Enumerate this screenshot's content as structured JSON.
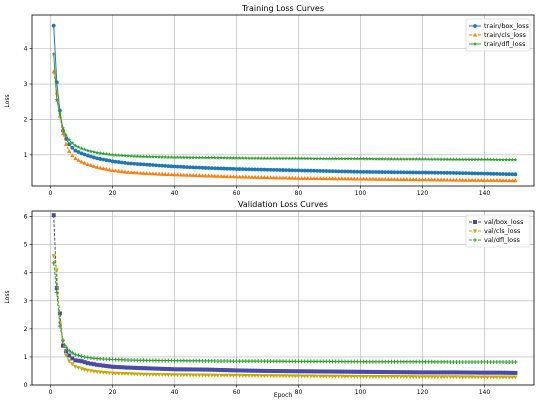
{
  "figure": {
    "background": "#ffffff",
    "grid_color": "#b0b0b0"
  },
  "chart_data": [
    {
      "type": "line",
      "title": "Training Loss Curves",
      "xlabel": "",
      "ylabel": "Loss",
      "xlim": [
        -6,
        156
      ],
      "ylim": [
        0.12,
        4.95
      ],
      "xticks": [
        0,
        20,
        40,
        60,
        80,
        100,
        120,
        140
      ],
      "yticks": [
        1,
        2,
        3,
        4
      ],
      "grid": true,
      "legend_position": "top-right",
      "x_range": [
        1,
        150
      ],
      "series": [
        {
          "name": "train/box_loss",
          "color": "#1f77b4",
          "marker": "circle",
          "linestyle": "solid",
          "points": [
            [
              1,
              4.65
            ],
            [
              2,
              3.05
            ],
            [
              3,
              2.25
            ],
            [
              4,
              1.68
            ],
            [
              5,
              1.45
            ],
            [
              6,
              1.3
            ],
            [
              7,
              1.2
            ],
            [
              8,
              1.12
            ],
            [
              10,
              1.04
            ],
            [
              12,
              0.98
            ],
            [
              15,
              0.9
            ],
            [
              20,
              0.82
            ],
            [
              25,
              0.76
            ],
            [
              30,
              0.73
            ],
            [
              40,
              0.67
            ],
            [
              50,
              0.63
            ],
            [
              60,
              0.6
            ],
            [
              70,
              0.58
            ],
            [
              80,
              0.56
            ],
            [
              90,
              0.54
            ],
            [
              100,
              0.52
            ],
            [
              110,
              0.51
            ],
            [
              120,
              0.5
            ],
            [
              130,
              0.49
            ],
            [
              140,
              0.47
            ],
            [
              145,
              0.46
            ],
            [
              150,
              0.45
            ]
          ]
        },
        {
          "name": "train/cls_loss",
          "color": "#ff7f0e",
          "marker": "triangle",
          "linestyle": "dashed",
          "points": [
            [
              1,
              3.35
            ],
            [
              2,
              2.75
            ],
            [
              3,
              2.1
            ],
            [
              4,
              1.6
            ],
            [
              5,
              1.3
            ],
            [
              6,
              1.1
            ],
            [
              7,
              0.98
            ],
            [
              8,
              0.9
            ],
            [
              10,
              0.8
            ],
            [
              12,
              0.73
            ],
            [
              15,
              0.65
            ],
            [
              20,
              0.56
            ],
            [
              25,
              0.51
            ],
            [
              30,
              0.48
            ],
            [
              40,
              0.44
            ],
            [
              50,
              0.41
            ],
            [
              60,
              0.38
            ],
            [
              70,
              0.36
            ],
            [
              80,
              0.34
            ],
            [
              90,
              0.33
            ],
            [
              100,
              0.32
            ],
            [
              110,
              0.31
            ],
            [
              120,
              0.3
            ],
            [
              130,
              0.29
            ],
            [
              140,
              0.28
            ],
            [
              145,
              0.28
            ],
            [
              150,
              0.27
            ]
          ]
        },
        {
          "name": "train/dfl_loss",
          "color": "#2ca02c",
          "marker": "star",
          "linestyle": "solid",
          "points": [
            [
              1,
              3.85
            ],
            [
              2,
              2.55
            ],
            [
              3,
              2.15
            ],
            [
              4,
              1.75
            ],
            [
              5,
              1.55
            ],
            [
              6,
              1.42
            ],
            [
              7,
              1.33
            ],
            [
              8,
              1.26
            ],
            [
              10,
              1.18
            ],
            [
              12,
              1.12
            ],
            [
              15,
              1.06
            ],
            [
              20,
              1.0
            ],
            [
              25,
              0.97
            ],
            [
              30,
              0.95
            ],
            [
              40,
              0.93
            ],
            [
              50,
              0.92
            ],
            [
              60,
              0.91
            ],
            [
              70,
              0.9
            ],
            [
              80,
              0.9
            ],
            [
              90,
              0.89
            ],
            [
              100,
              0.89
            ],
            [
              110,
              0.88
            ],
            [
              120,
              0.88
            ],
            [
              130,
              0.87
            ],
            [
              140,
              0.87
            ],
            [
              145,
              0.86
            ],
            [
              150,
              0.86
            ]
          ]
        }
      ]
    },
    {
      "type": "line",
      "title": "Validation Loss Curves",
      "xlabel": "Epoch",
      "ylabel": "Loss",
      "xlim": [
        -6,
        156
      ],
      "ylim": [
        0,
        6.2
      ],
      "xticks": [
        0,
        20,
        40,
        60,
        80,
        100,
        120,
        140
      ],
      "yticks": [
        0,
        1,
        2,
        3,
        4,
        5,
        6
      ],
      "grid": true,
      "legend_position": "top-right",
      "x_range": [
        1,
        150
      ],
      "series": [
        {
          "name": "val/box_loss",
          "color": "#4a4aa8",
          "marker": "square",
          "linestyle": "dashed",
          "points": [
            [
              1,
              6.05
            ],
            [
              2,
              3.45
            ],
            [
              3,
              2.55
            ],
            [
              4,
              1.4
            ],
            [
              5,
              1.2
            ],
            [
              6,
              1.05
            ],
            [
              7,
              0.95
            ],
            [
              8,
              0.88
            ],
            [
              10,
              0.85
            ],
            [
              12,
              0.78
            ],
            [
              15,
              0.72
            ],
            [
              20,
              0.65
            ],
            [
              25,
              0.62
            ],
            [
              30,
              0.6
            ],
            [
              40,
              0.56
            ],
            [
              50,
              0.55
            ],
            [
              60,
              0.52
            ],
            [
              70,
              0.5
            ],
            [
              80,
              0.49
            ],
            [
              90,
              0.48
            ],
            [
              100,
              0.47
            ],
            [
              110,
              0.46
            ],
            [
              120,
              0.45
            ],
            [
              130,
              0.45
            ],
            [
              140,
              0.44
            ],
            [
              145,
              0.44
            ],
            [
              150,
              0.43
            ]
          ]
        },
        {
          "name": "val/cls_loss",
          "color": "#c9a800",
          "marker": "triangle-down",
          "linestyle": "dashed",
          "points": [
            [
              1,
              4.6
            ],
            [
              2,
              4.1
            ],
            [
              3,
              2.2
            ],
            [
              4,
              1.55
            ],
            [
              5,
              1.05
            ],
            [
              6,
              0.85
            ],
            [
              7,
              0.75
            ],
            [
              8,
              0.65
            ],
            [
              10,
              0.58
            ],
            [
              12,
              0.52
            ],
            [
              15,
              0.47
            ],
            [
              20,
              0.42
            ],
            [
              25,
              0.4
            ],
            [
              30,
              0.38
            ],
            [
              40,
              0.36
            ],
            [
              50,
              0.35
            ],
            [
              60,
              0.34
            ],
            [
              70,
              0.33
            ],
            [
              80,
              0.32
            ],
            [
              90,
              0.31
            ],
            [
              100,
              0.3
            ],
            [
              110,
              0.3
            ],
            [
              120,
              0.29
            ],
            [
              130,
              0.29
            ],
            [
              140,
              0.28
            ],
            [
              145,
              0.28
            ],
            [
              150,
              0.28
            ]
          ]
        },
        {
          "name": "val/dfl_loss",
          "color": "#2ca02c",
          "marker": "plus",
          "linestyle": "dashed",
          "points": [
            [
              1,
              4.35
            ],
            [
              2,
              3.3
            ],
            [
              3,
              2.1
            ],
            [
              4,
              1.6
            ],
            [
              5,
              1.35
            ],
            [
              6,
              1.22
            ],
            [
              7,
              1.15
            ],
            [
              8,
              1.08
            ],
            [
              10,
              1.02
            ],
            [
              12,
              0.98
            ],
            [
              15,
              0.94
            ],
            [
              20,
              0.91
            ],
            [
              25,
              0.89
            ],
            [
              30,
              0.88
            ],
            [
              40,
              0.87
            ],
            [
              50,
              0.86
            ],
            [
              60,
              0.85
            ],
            [
              70,
              0.85
            ],
            [
              80,
              0.84
            ],
            [
              90,
              0.84
            ],
            [
              100,
              0.83
            ],
            [
              110,
              0.83
            ],
            [
              120,
              0.83
            ],
            [
              130,
              0.82
            ],
            [
              140,
              0.82
            ],
            [
              145,
              0.82
            ],
            [
              150,
              0.82
            ]
          ]
        }
      ]
    }
  ]
}
